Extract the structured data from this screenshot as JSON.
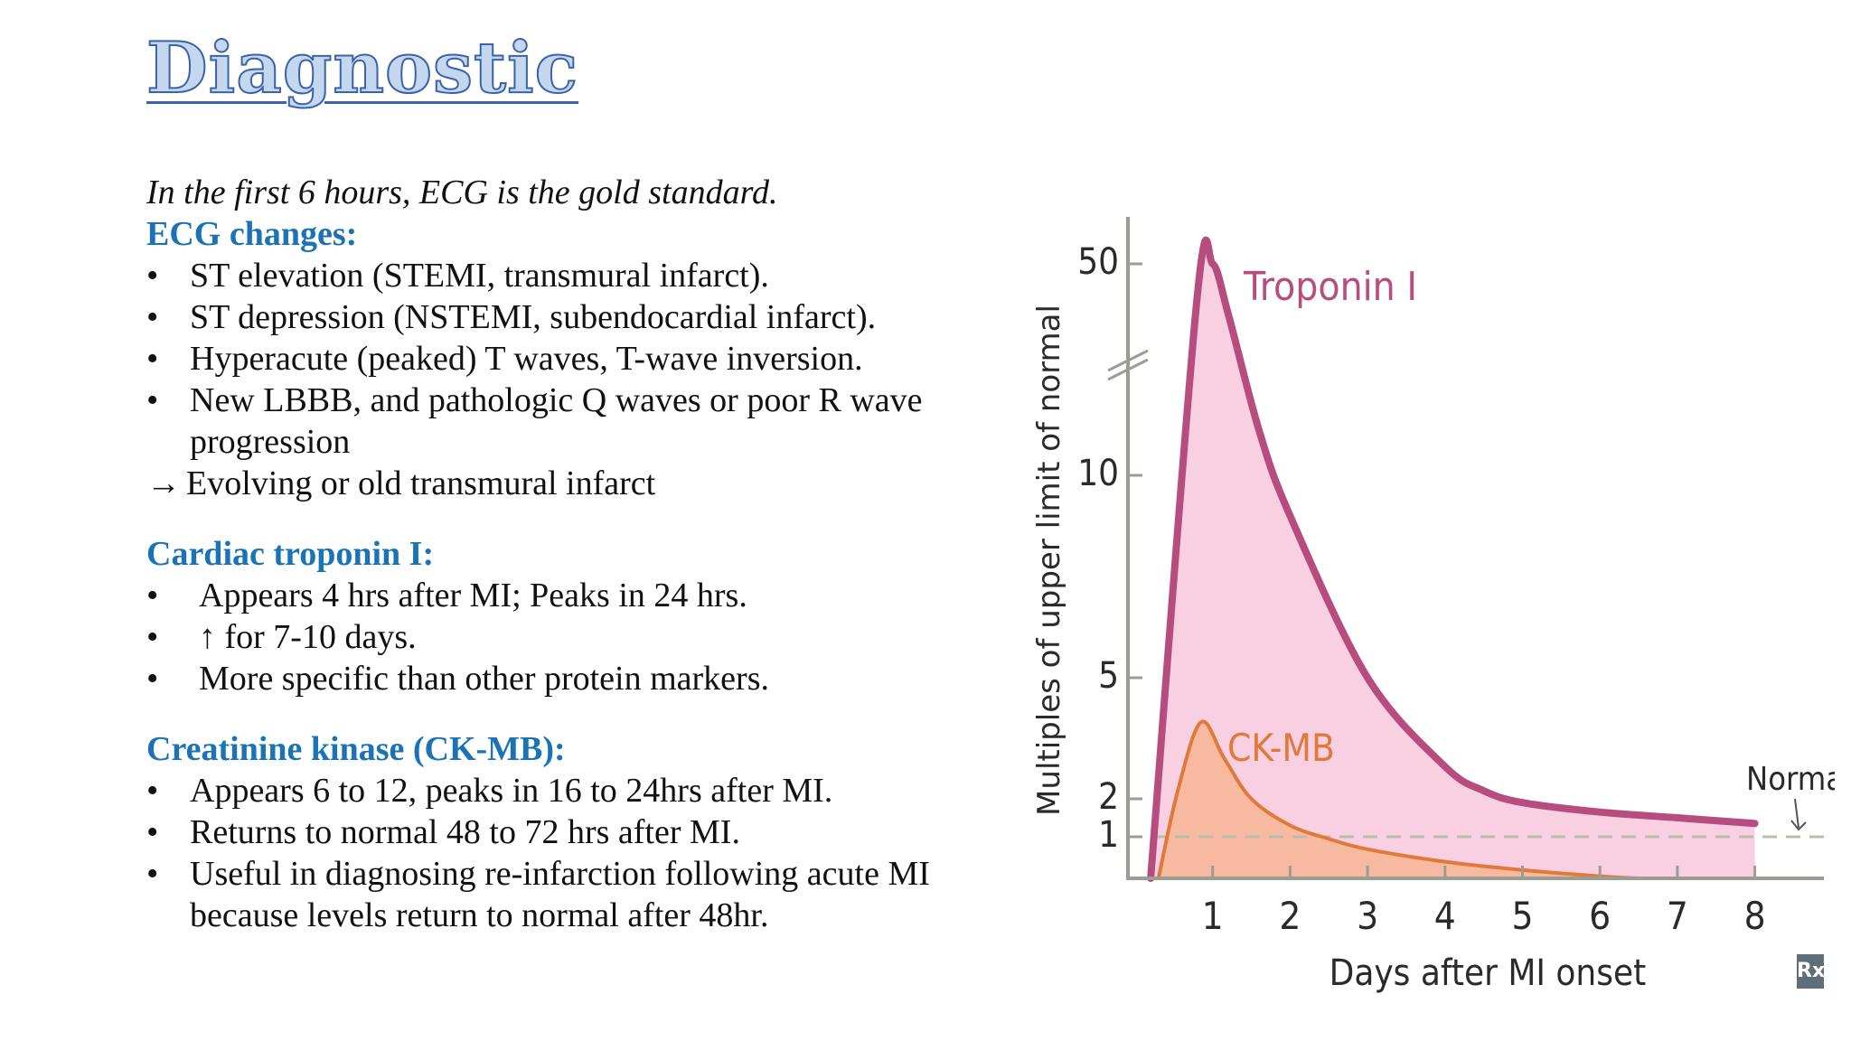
{
  "title": "Diagnostic",
  "intro": "In the first 6 hours, ECG is the gold standard.",
  "ecg": {
    "heading": "ECG changes:",
    "bullets": [
      "ST elevation (STEMI, transmural infarct).",
      "ST depression (NSTEMI, subendocardial infarct).",
      "Hyperacute (peaked) T waves, T-wave inversion.",
      "New LBBB, and pathologic Q waves or poor R wave progression"
    ],
    "arrow": "→",
    "conclusion": "Evolving or old transmural infarct"
  },
  "troponin": {
    "heading": "Cardiac troponin I:",
    "bullets": [
      "Appears 4 hrs after MI; Peaks in 24 hrs.",
      "↑ for 7-10 days.",
      "More specific than other protein markers."
    ]
  },
  "ckmb": {
    "heading": "Creatinine kinase (CK-MB):",
    "bullets": [
      "Appears 6 to 12, peaks in 16 to 24hrs after MI.",
      "Returns to normal 48 to 72 hrs after MI.",
      "Useful in diagnosing re-infarction following acute MI because levels return to normal after 48hr."
    ]
  },
  "bullet_char": "•",
  "badge": "Rx",
  "colors": {
    "heading": "#1b73b6",
    "troponin_line": "#b74d7f",
    "troponin_fill": "#f9cfe2",
    "ckmb_line": "#e07a3a",
    "ckmb_fill": "#f6b79a",
    "axis": "#9c9d92",
    "normal_line": "#b9bdaa"
  },
  "chart_data": {
    "type": "area",
    "xlabel": "Days after MI onset",
    "ylabel": "Multiples of upper limit of normal",
    "x_ticks": [
      1,
      2,
      3,
      4,
      5,
      6,
      7,
      8
    ],
    "y_ticks": [
      1,
      2,
      5,
      10,
      50
    ],
    "y_axis_break": true,
    "normal_level": 1,
    "normal_label": "Normal",
    "series": [
      {
        "name": "Troponin I",
        "points": [
          [
            0.2,
            0
          ],
          [
            0.8,
            40
          ],
          [
            1.0,
            50
          ],
          [
            1.2,
            35
          ],
          [
            1.6,
            14
          ],
          [
            2.0,
            9
          ],
          [
            3.0,
            5
          ],
          [
            4.0,
            2.8
          ],
          [
            4.5,
            2.2
          ],
          [
            5.0,
            1.9
          ],
          [
            6.0,
            1.65
          ],
          [
            7.0,
            1.5
          ],
          [
            8.0,
            1.35
          ]
        ]
      },
      {
        "name": "CK-MB",
        "points": [
          [
            0.3,
            0
          ],
          [
            0.55,
            2.2
          ],
          [
            0.85,
            3.9
          ],
          [
            1.15,
            3.0
          ],
          [
            1.5,
            2.0
          ],
          [
            2.0,
            1.3
          ],
          [
            2.5,
            0.95
          ],
          [
            3.0,
            0.7
          ],
          [
            4.0,
            0.4
          ],
          [
            5.0,
            0.2
          ],
          [
            6.0,
            0.05
          ],
          [
            6.5,
            0.0
          ]
        ]
      }
    ]
  }
}
